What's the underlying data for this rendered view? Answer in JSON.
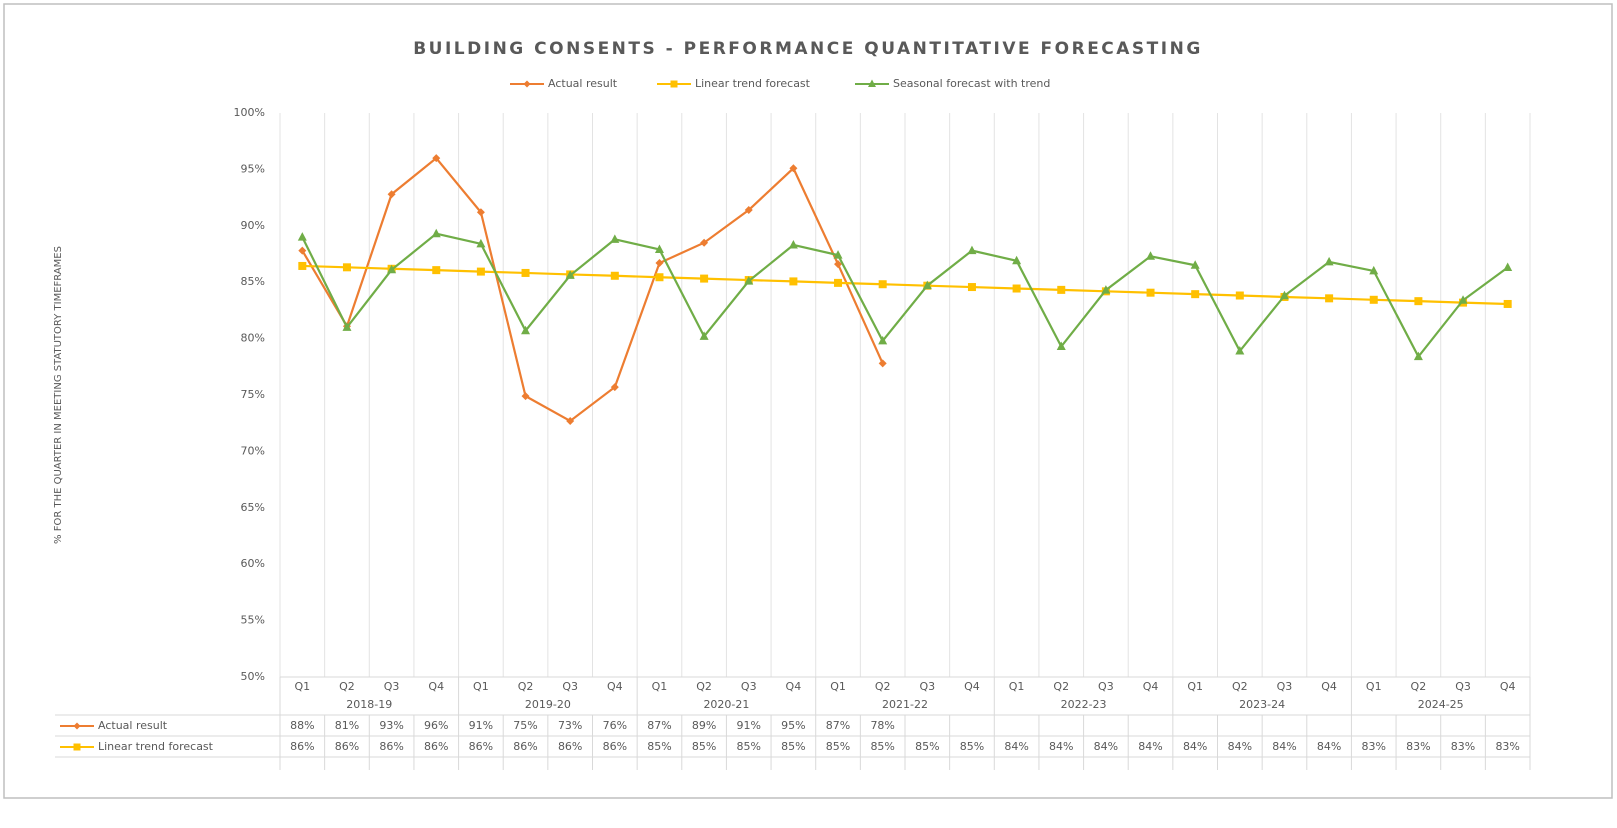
{
  "chart_data": {
    "type": "line",
    "title": "BUILDING CONSENTS - PERFORMANCE QUANTITATIVE FORECASTING",
    "y_label": "% FOR THE QUARTER IN MEETING STATUTORY TIMEFRAMES",
    "categories": [
      "Q1",
      "Q2",
      "Q3",
      "Q4",
      "Q1",
      "Q2",
      "Q3",
      "Q4",
      "Q1",
      "Q2",
      "Q3",
      "Q4",
      "Q1",
      "Q2",
      "Q3",
      "Q4",
      "Q1",
      "Q2",
      "Q3",
      "Q4",
      "Q1",
      "Q2",
      "Q3",
      "Q4",
      "Q1",
      "Q2",
      "Q3",
      "Q4"
    ],
    "category_groups": [
      "2018-19",
      "2019-20",
      "2020-21",
      "2021-22",
      "2022-23",
      "2023-24",
      "2024-25"
    ],
    "ylim": [
      50,
      100
    ],
    "yticks": [
      {
        "value": 50,
        "label": "50%"
      },
      {
        "value": 55,
        "label": "55%"
      },
      {
        "value": 60,
        "label": "60%"
      },
      {
        "value": 65,
        "label": "65%"
      },
      {
        "value": 70,
        "label": "70%"
      },
      {
        "value": 75,
        "label": "75%"
      },
      {
        "value": 80,
        "label": "80%"
      },
      {
        "value": 85,
        "label": "85%"
      },
      {
        "value": 90,
        "label": "90%"
      },
      {
        "value": 95,
        "label": "95%"
      },
      {
        "value": 100,
        "label": "100%"
      }
    ],
    "legend": "top",
    "grid": "vertical",
    "series": [
      {
        "name": "Actual result",
        "color": "#ed7d31",
        "marker": "diamond",
        "values": [
          87.8,
          81.1,
          92.8,
          96.0,
          91.2,
          74.9,
          72.7,
          75.7,
          86.7,
          88.5,
          91.4,
          95.1,
          86.6,
          77.8,
          null,
          null,
          null,
          null,
          null,
          null,
          null,
          null,
          null,
          null,
          null,
          null,
          null,
          null
        ],
        "value_labels": [
          "88%",
          "81%",
          "93%",
          "96%",
          "91%",
          "75%",
          "73%",
          "76%",
          "87%",
          "89%",
          "91%",
          "95%",
          "87%",
          "78%",
          null,
          null,
          null,
          null,
          null,
          null,
          null,
          null,
          null,
          null,
          null,
          null,
          null,
          null
        ]
      },
      {
        "name": "Linear trend forecast",
        "color": "#ffc000",
        "marker": "square",
        "values": [
          86.44,
          86.32,
          86.19,
          86.07,
          85.94,
          85.82,
          85.69,
          85.57,
          85.44,
          85.32,
          85.19,
          85.07,
          84.94,
          84.82,
          84.69,
          84.57,
          84.44,
          84.32,
          84.19,
          84.07,
          83.94,
          83.82,
          83.69,
          83.57,
          83.44,
          83.32,
          83.19,
          83.07
        ],
        "value_labels": [
          "86%",
          "86%",
          "86%",
          "86%",
          "86%",
          "86%",
          "86%",
          "86%",
          "85%",
          "85%",
          "85%",
          "85%",
          "85%",
          "85%",
          "85%",
          "85%",
          "84%",
          "84%",
          "84%",
          "84%",
          "84%",
          "84%",
          "84%",
          "84%",
          "83%",
          "83%",
          "83%",
          "83%"
        ]
      },
      {
        "name": "Seasonal forecast with trend",
        "color": "#70ad47",
        "marker": "triangle",
        "values": [
          89.0,
          81.0,
          86.1,
          89.3,
          88.4,
          80.7,
          85.6,
          88.8,
          87.9,
          80.2,
          85.1,
          88.3,
          87.4,
          79.8,
          84.7,
          87.8,
          86.9,
          79.3,
          84.3,
          87.3,
          86.5,
          78.9,
          83.8,
          86.8,
          86.0,
          78.4,
          83.4,
          86.3
        ],
        "value_labels": [
          "89%",
          "81%",
          "86%",
          "89%",
          "88%",
          "81%",
          "86%",
          "89%",
          "88%",
          "80%",
          "85%",
          "88%",
          "87%",
          "80%",
          "85%",
          "88%",
          "87%",
          "79%",
          "84%",
          "87%",
          "86%",
          "79%",
          "84%",
          "87%",
          "86%",
          "78%",
          "83%",
          "86%"
        ]
      }
    ]
  }
}
